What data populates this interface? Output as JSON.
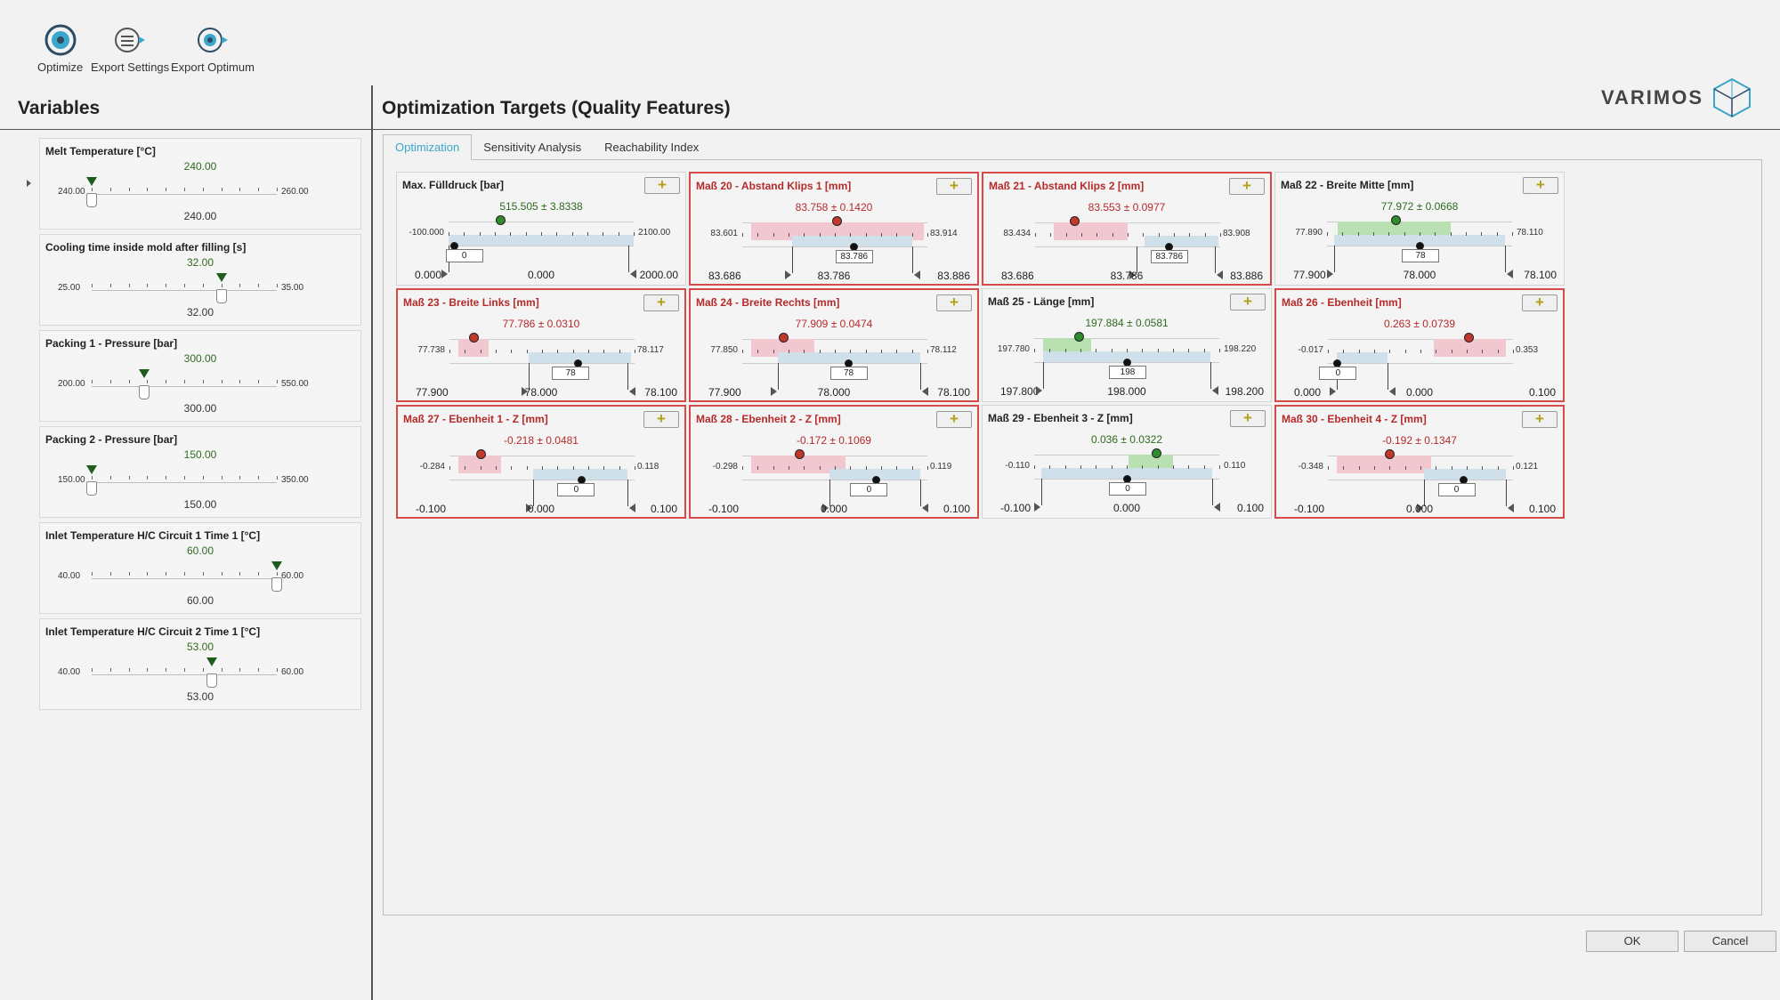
{
  "toolbar": {
    "optimize": "Optimize",
    "export_settings": "Export Settings",
    "export_optimum": "Export Optimum"
  },
  "logo": {
    "text": "VARIMOS"
  },
  "variables": {
    "title": "Variables",
    "items": [
      {
        "name": "Melt Temperature [°C]",
        "value": "240.00",
        "min": "240.00",
        "max": "260.00",
        "bottom": "240.00",
        "pos": 0.0
      },
      {
        "name": "Cooling time inside mold after filling [s]",
        "value": "32.00",
        "min": "25.00",
        "max": "35.00",
        "bottom": "32.00",
        "pos": 0.7
      },
      {
        "name": "Packing 1 - Pressure [bar]",
        "value": "300.00",
        "min": "200.00",
        "max": "550.00",
        "bottom": "300.00",
        "pos": 0.286
      },
      {
        "name": "Packing 2 - Pressure [bar]",
        "value": "150.00",
        "min": "150.00",
        "max": "350.00",
        "bottom": "150.00",
        "pos": 0.0
      },
      {
        "name": "Inlet Temperature H/C Circuit 1 Time 1 [°C]",
        "value": "60.00",
        "min": "40.00",
        "max": "60.00",
        "bottom": "60.00",
        "pos": 1.0
      },
      {
        "name": "Inlet Temperature H/C Circuit 2 Time 1 [°C]",
        "value": "53.00",
        "min": "40.00",
        "max": "60.00",
        "bottom": "53.00",
        "pos": 0.65
      }
    ]
  },
  "targets": {
    "title": "Optimization Targets (Quality Features)",
    "tabs": [
      "Optimization",
      "Sensitivity Analysis",
      "Reachability Index"
    ],
    "plus": "+",
    "cards": [
      {
        "title": "Max. Fülldruck [bar]",
        "bad": false,
        "val": "515.505  ±  3.8338",
        "lo": "-100.000",
        "hi": "2100.00",
        "footLo": "0.000",
        "footMid": "0.000",
        "footHi": "2000.00",
        "input": "0",
        "dot": "green",
        "dotPos": 0.28,
        "bandFrom": 0.25,
        "bandTo": 0.31,
        "bandColor": "none",
        "blueFrom": 0.0,
        "blueTo": 1.0,
        "blackPos": 0.03,
        "leftLine": 0.0,
        "rightLine": 0.97,
        "inputPos": 0.08
      },
      {
        "title": "Maß 20 - Abstand Klips 1 [mm]",
        "bad": true,
        "val": "83.758  ±  0.1420",
        "lo": "83.601",
        "hi": "83.914",
        "footLo": "83.686",
        "footMid": "83.786",
        "footHi": "83.886",
        "input": "83.786",
        "dot": "red",
        "dotPos": 0.51,
        "bandFrom": 0.05,
        "bandTo": 0.98,
        "bandColor": "red",
        "blueFrom": 0.27,
        "blueTo": 0.92,
        "blackPos": 0.6,
        "leftLine": 0.27,
        "rightLine": 0.92,
        "inputPos": 0.6
      },
      {
        "title": "Maß 21 - Abstand Klips 2 [mm]",
        "bad": true,
        "val": "83.553  ±  0.0977",
        "lo": "83.434",
        "hi": "83.908",
        "footLo": "83.686",
        "footMid": "83.786",
        "footHi": "83.886",
        "input": "83.786",
        "dot": "red",
        "dotPos": 0.21,
        "bandFrom": 0.1,
        "bandTo": 0.5,
        "bandColor": "red",
        "blueFrom": 0.59,
        "blueTo": 0.99,
        "blackPos": 0.72,
        "leftLine": 0.55,
        "rightLine": 0.97,
        "inputPos": 0.72
      },
      {
        "title": "Maß 22 - Breite Mitte [mm]",
        "bad": false,
        "val": "77.972  ±  0.0668",
        "lo": "77.890",
        "hi": "78.110",
        "footLo": "77.900",
        "footMid": "78.000",
        "footHi": "78.100",
        "input": "78",
        "dot": "green",
        "dotPos": 0.37,
        "bandFrom": 0.06,
        "bandTo": 0.67,
        "bandColor": "green",
        "blueFrom": 0.04,
        "blueTo": 0.96,
        "blackPos": 0.5,
        "leftLine": 0.04,
        "rightLine": 0.96,
        "inputPos": 0.5
      },
      {
        "title": "Maß 23 - Breite Links [mm]",
        "bad": true,
        "val": "77.786  ±  0.0310",
        "lo": "77.738",
        "hi": "78.117",
        "footLo": "77.900",
        "footMid": "78.000",
        "footHi": "78.100",
        "input": "78",
        "dot": "red",
        "dotPos": 0.13,
        "bandFrom": 0.05,
        "bandTo": 0.21,
        "bandColor": "red",
        "blueFrom": 0.43,
        "blueTo": 0.98,
        "blackPos": 0.69,
        "leftLine": 0.43,
        "rightLine": 0.96,
        "inputPos": 0.65
      },
      {
        "title": "Maß 24 - Breite Rechts [mm]",
        "bad": true,
        "val": "77.909  ±  0.0474",
        "lo": "77.850",
        "hi": "78.112",
        "footLo": "77.900",
        "footMid": "78.000",
        "footHi": "78.100",
        "input": "78",
        "dot": "red",
        "dotPos": 0.22,
        "bandFrom": 0.05,
        "bandTo": 0.39,
        "bandColor": "red",
        "blueFrom": 0.19,
        "blueTo": 0.96,
        "blackPos": 0.57,
        "leftLine": 0.19,
        "rightLine": 0.96,
        "inputPos": 0.57
      },
      {
        "title": "Maß 25 - Länge [mm]",
        "bad": false,
        "val": "197.884  ±  0.0581",
        "lo": "197.780",
        "hi": "198.220",
        "footLo": "197.800",
        "footMid": "198.000",
        "footHi": "198.200",
        "input": "198",
        "dot": "green",
        "dotPos": 0.24,
        "bandFrom": 0.05,
        "bandTo": 0.31,
        "bandColor": "green",
        "blueFrom": 0.05,
        "blueTo": 0.95,
        "blackPos": 0.5,
        "leftLine": 0.05,
        "rightLine": 0.95,
        "inputPos": 0.5
      },
      {
        "title": "Maß 26 - Ebenheit [mm]",
        "bad": true,
        "val": "0.263  ±  0.0739",
        "lo": "-0.017",
        "hi": "0.353",
        "footLo": "0.000",
        "footMid": "0.000",
        "footHi": "0.100",
        "input": "0",
        "dot": "red",
        "dotPos": 0.76,
        "bandFrom": 0.57,
        "bandTo": 0.96,
        "bandColor": "red",
        "blueFrom": 0.05,
        "blueTo": 0.32,
        "blackPos": 0.05,
        "leftLine": 0.05,
        "rightLine": 0.32,
        "inputPos": 0.05
      },
      {
        "title": "Maß 27 - Ebenheit 1 - Z [mm]",
        "bad": true,
        "val": "-0.218  ±  0.0481",
        "lo": "-0.284",
        "hi": "0.118",
        "footLo": "-0.100",
        "footMid": "0.000",
        "footHi": "0.100",
        "input": "0",
        "dot": "red",
        "dotPos": 0.17,
        "bandFrom": 0.05,
        "bandTo": 0.28,
        "bandColor": "red",
        "blueFrom": 0.45,
        "blueTo": 0.96,
        "blackPos": 0.71,
        "leftLine": 0.45,
        "rightLine": 0.96,
        "inputPos": 0.68
      },
      {
        "title": "Maß 28 - Ebenheit 2 - Z [mm]",
        "bad": true,
        "val": "-0.172  ±  0.1069",
        "lo": "-0.298",
        "hi": "0.119",
        "footLo": "-0.100",
        "footMid": "0.000",
        "footHi": "0.100",
        "input": "0",
        "dot": "red",
        "dotPos": 0.31,
        "bandFrom": 0.05,
        "bandTo": 0.56,
        "bandColor": "red",
        "blueFrom": 0.47,
        "blueTo": 0.96,
        "blackPos": 0.72,
        "leftLine": 0.47,
        "rightLine": 0.96,
        "inputPos": 0.68
      },
      {
        "title": "Maß 29 - Ebenheit 3 - Z [mm]",
        "bad": false,
        "val": "0.036  ±  0.0322",
        "lo": "-0.110",
        "hi": "0.110",
        "footLo": "-0.100",
        "footMid": "0.000",
        "footHi": "0.100",
        "input": "0",
        "dot": "green",
        "dotPos": 0.66,
        "bandFrom": 0.51,
        "bandTo": 0.75,
        "bandColor": "green",
        "blueFrom": 0.04,
        "blueTo": 0.96,
        "blackPos": 0.5,
        "leftLine": 0.04,
        "rightLine": 0.96,
        "inputPos": 0.5
      },
      {
        "title": "Maß 30 - Ebenheit 4 - Z [mm]",
        "bad": true,
        "val": "-0.192  ±  0.1347",
        "lo": "-0.348",
        "hi": "0.121",
        "footLo": "-0.100",
        "footMid": "0.000",
        "footHi": "0.100",
        "input": "0",
        "dot": "red",
        "dotPos": 0.33,
        "bandFrom": 0.05,
        "bandTo": 0.56,
        "bandColor": "red",
        "blueFrom": 0.52,
        "blueTo": 0.96,
        "blackPos": 0.73,
        "leftLine": 0.52,
        "rightLine": 0.96,
        "inputPos": 0.69
      }
    ]
  },
  "buttons": {
    "ok": "OK",
    "cancel": "Cancel"
  },
  "colors": {
    "accent": "#3aa6c9",
    "bad": "#d64a4a",
    "good": "#2e6b1f"
  }
}
